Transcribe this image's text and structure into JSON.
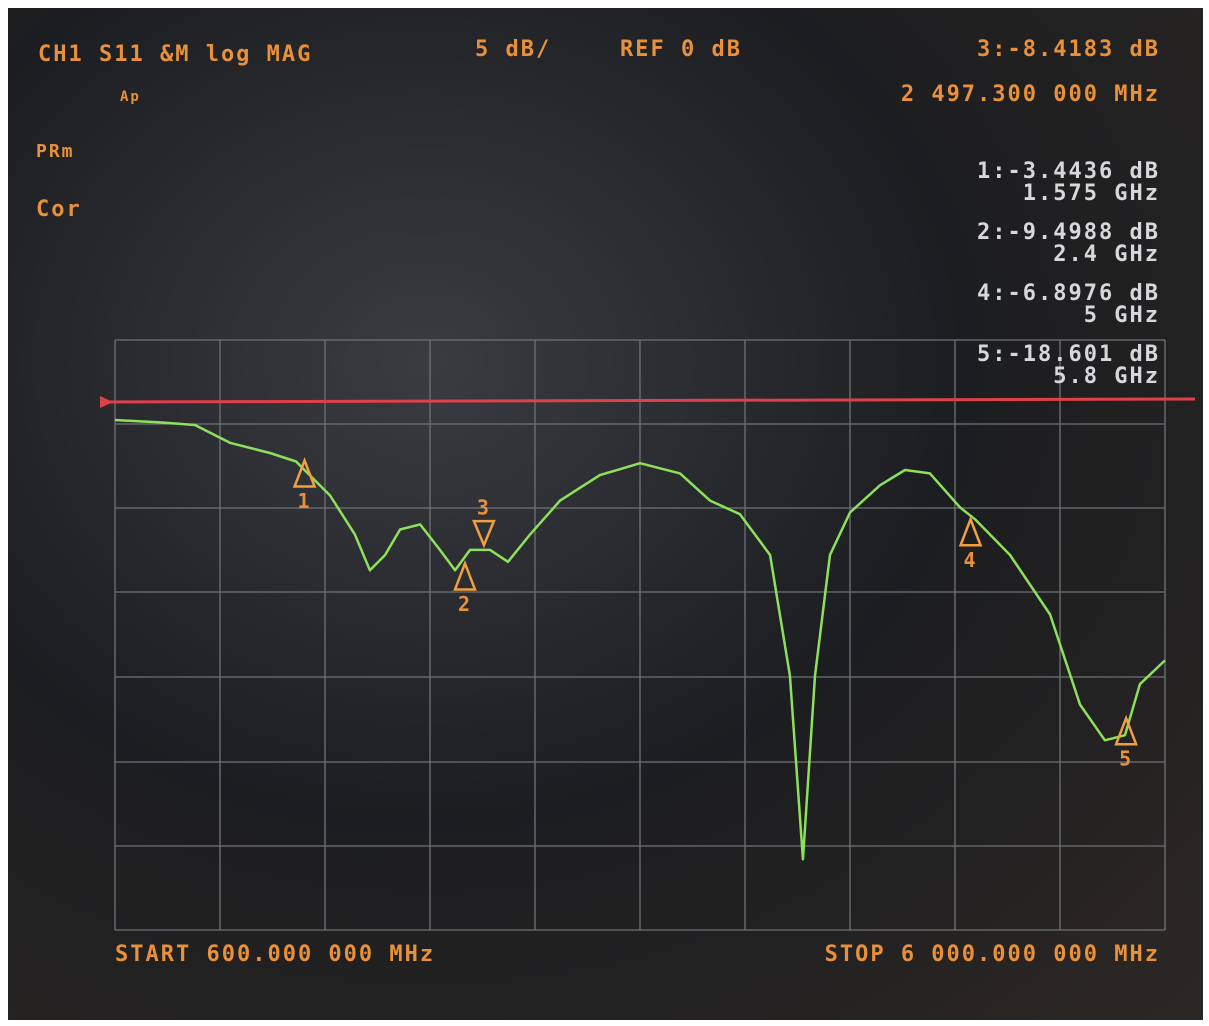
{
  "chart_data": {
    "type": "line",
    "title": "CH1 S11 &M log MAG",
    "scale_label": "5 dB/",
    "ref_label": "REF 0 dB",
    "ref_value": 0,
    "ref_color": "#e0404a",
    "status_labels": [
      "Ap",
      "PRm",
      "Cor"
    ],
    "active_marker": {
      "readout": "3:-8.4183 dB",
      "freq_label": "2 497.300 000 MHz"
    },
    "start_label": "START 600.000 000 MHz",
    "stop_label": "STOP 6 000.000 000 MHz",
    "xlim": [
      600,
      6000
    ],
    "ylim": [
      -31,
      4
    ],
    "x": [
      600,
      831,
      1011,
      1191,
      1397,
      1531,
      1706,
      1834,
      1911,
      1989,
      2066,
      2169,
      2271,
      2349,
      2426,
      2529,
      2621,
      2734,
      2889,
      3094,
      3300,
      3506,
      3660,
      3814,
      3969,
      4071,
      4138,
      4200,
      4277,
      4380,
      4534,
      4663,
      4791,
      4946,
      5023,
      5203,
      5409,
      5563,
      5691,
      5794,
      5871,
      6000
    ],
    "series": [
      {
        "name": "S11",
        "color": "#8ee05a",
        "values": [
          -1.06,
          -1.2,
          -1.35,
          -2.4,
          -3.0,
          -3.5,
          -5.5,
          -7.8,
          -9.9,
          -9.0,
          -7.5,
          -7.2,
          -8.7,
          -9.9,
          -8.7,
          -8.7,
          -9.4,
          -7.8,
          -5.8,
          -4.3,
          -3.6,
          -4.2,
          -5.8,
          -6.6,
          -9.0,
          -16.1,
          -26.9,
          -16.1,
          -9.0,
          -6.5,
          -4.9,
          -4.0,
          -4.2,
          -6.2,
          -6.9,
          -9.0,
          -12.5,
          -17.8,
          -19.9,
          -19.6,
          -16.6,
          -15.2
        ]
      }
    ],
    "marker_color": "#f0a040",
    "markers": [
      {
        "label": "1",
        "x": 1575,
        "y": -3.4436,
        "readout": "1:-3.4436 dB",
        "freq_label": "1.575 GHz"
      },
      {
        "label": "2",
        "x": 2400,
        "y": -9.4988,
        "readout": "2:-9.4988 dB",
        "freq_label": "2.4 GHz"
      },
      {
        "label": "3",
        "x": 2497.3,
        "y": -8.4183
      },
      {
        "label": "4",
        "x": 5000,
        "y": -6.8976,
        "readout": "4:-6.8976 dB",
        "freq_label": "5 GHz"
      },
      {
        "label": "5",
        "x": 5800,
        "y": -18.601,
        "readout": "5:-18.601 dB",
        "freq_label": "5.8 GHz"
      }
    ]
  }
}
